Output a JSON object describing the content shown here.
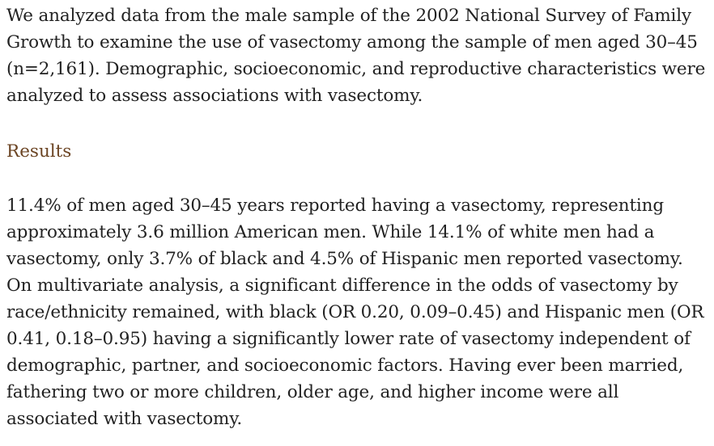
{
  "abstract": {
    "methods_text": "We analyzed data from the male sample of the 2002 National Survey of Family Growth to examine the use of vasectomy among the sample of men aged 30–45 (n=2,161). Demographic, socioeconomic, and reproductive characteristics were analyzed to assess associations with vasectomy.",
    "results_heading": "Results",
    "results_text": "11.4% of men aged 30–45 years reported having a vasectomy, representing approximately 3.6 million American men. While 14.1% of white men had a vasectomy, only 3.7% of black and 4.5% of Hispanic men reported vasectomy. On multivariate analysis, a significant difference in the odds of vasectomy by race/ethnicity remained, with black (OR 0.20, 0.09–0.45) and Hispanic men (OR 0.41, 0.18–0.95) having a significantly lower rate of vasectomy independent of demographic, partner, and socioeconomic factors. Having ever been married, fathering two or more children, older age, and higher income were all associated with vasectomy."
  },
  "colors": {
    "heading": "#6b4423",
    "text": "#222222"
  }
}
